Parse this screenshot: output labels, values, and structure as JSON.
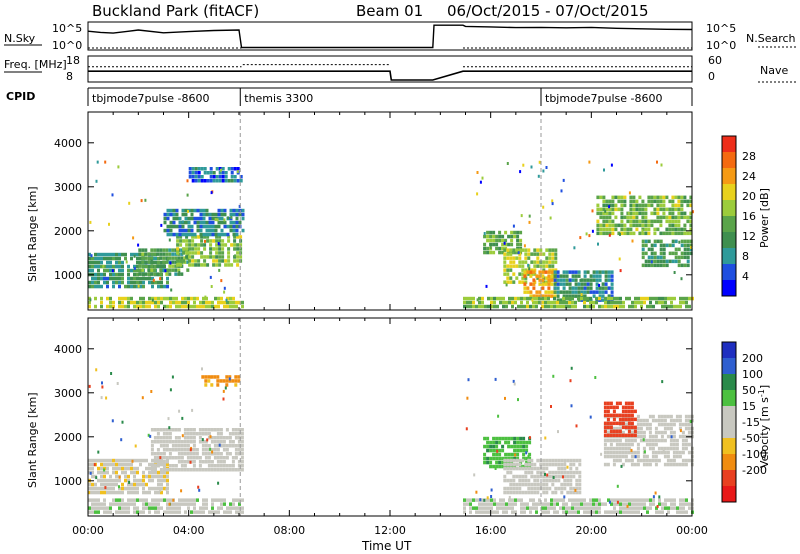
{
  "header": {
    "station": "Buckland Park (fitACF)",
    "beam": "Beam 01",
    "date_range": "06/Oct/2015 - 07/Oct/2015"
  },
  "colors": {
    "power_scale": [
      "#0000ff",
      "#1f4fe0",
      "#2f9a9a",
      "#3f8f4f",
      "#5aa44a",
      "#9ccc3c",
      "#e8d11c",
      "#f59a14",
      "#f46a10",
      "#ee2e1a"
    ],
    "velocity_scale": [
      "#1f2fc0",
      "#2f5fd0",
      "#2a8a4a",
      "#4cc040",
      "#c8c8c0",
      "#c8c8c0",
      "#f0c020",
      "#f08c10",
      "#e84020",
      "#e81818"
    ],
    "ground_scatter": "#b4b4b4"
  },
  "chart_data": [
    {
      "type": "line",
      "panel": "noise",
      "left_label": "N.Sky",
      "right_label": "N.Search",
      "left_ticks": [
        "10^5",
        "10^0"
      ],
      "right_ticks": [
        "10^5",
        "10^0"
      ],
      "series": [
        {
          "name": "N.Sky",
          "x": [
            0.0,
            0.5,
            1.0,
            2.0,
            3.0,
            4.0,
            5.0,
            6.0,
            6.1,
            13.7,
            13.75,
            14.9,
            15.0,
            16.0,
            17.0,
            18.0,
            19.0,
            20.0,
            21.0,
            22.0,
            23.0,
            24.0
          ],
          "values": [
            0.7,
            0.65,
            0.68,
            0.7,
            0.66,
            0.72,
            0.7,
            0.75,
            0.02,
            0.02,
            0.95,
            0.95,
            0.9,
            0.88,
            0.85,
            0.86,
            0.84,
            0.86,
            0.82,
            0.8,
            0.78,
            0.77
          ]
        },
        {
          "name": "N.Search",
          "x": [
            0.0,
            6.1,
            14.9,
            24.0
          ],
          "values": [
            0.0,
            0.0,
            0.0,
            0.0
          ]
        }
      ]
    },
    {
      "type": "line",
      "panel": "frequency",
      "left_label": "Freq. [MHz]",
      "right_label": "Nave",
      "left_ticks": [
        18,
        8
      ],
      "right_ticks": [
        60,
        0
      ],
      "series": [
        {
          "name": "Freq.",
          "x": [
            0.0,
            6.1,
            6.15,
            12.0,
            12.05,
            13.7,
            14.9,
            24.0
          ],
          "values": [
            12.0,
            12.0,
            12.0,
            12.0,
            8.0,
            8.0,
            12.0,
            12.0
          ]
        },
        {
          "name": "Nave",
          "x": [
            0.0,
            6.1,
            6.15,
            12.0,
            14.9,
            24.0
          ],
          "values": [
            36,
            36,
            42,
            42,
            36,
            36
          ]
        }
      ]
    },
    {
      "type": "table",
      "panel": "cpid",
      "label": "CPID",
      "segments": [
        {
          "start": 0.0,
          "end": 6.05,
          "text": "tbjmode7pulse -8600"
        },
        {
          "start": 6.05,
          "end": 18.0,
          "text": "themis 3300"
        },
        {
          "start": 18.0,
          "end": 24.0,
          "text": "tbjmode7pulse -8600"
        }
      ]
    },
    {
      "type": "heatmap",
      "panel": "power",
      "ylabel": "Slant Range [km]",
      "yticks": [
        1000,
        2000,
        3000,
        4000
      ],
      "ylim": [
        200,
        4700
      ],
      "xlim": [
        0,
        24
      ],
      "colorbar": {
        "label": "Power [dB]",
        "ticks": [
          4,
          8,
          12,
          16,
          20,
          24,
          28
        ],
        "range": [
          0,
          32
        ]
      },
      "blobs": [
        {
          "t0": 0.0,
          "t1": 3.2,
          "r0": 700,
          "r1": 1500,
          "level": 10
        },
        {
          "t0": 2.0,
          "t1": 4.0,
          "r0": 1000,
          "r1": 1600,
          "level": 13
        },
        {
          "t0": 3.5,
          "t1": 6.1,
          "r0": 1200,
          "r1": 1900,
          "level": 16
        },
        {
          "t0": 3.0,
          "t1": 6.1,
          "r0": 1900,
          "r1": 2500,
          "level": 8
        },
        {
          "t0": 4.0,
          "t1": 6.1,
          "r0": 3150,
          "r1": 3450,
          "level": 6
        },
        {
          "t0": 0.0,
          "t1": 6.1,
          "r0": 250,
          "r1": 500,
          "level": 18
        },
        {
          "t0": 15.7,
          "t1": 17.2,
          "r0": 1500,
          "r1": 2000,
          "level": 14
        },
        {
          "t0": 16.5,
          "t1": 18.6,
          "r0": 800,
          "r1": 1600,
          "level": 18
        },
        {
          "t0": 17.3,
          "t1": 18.5,
          "r0": 500,
          "r1": 1100,
          "level": 24
        },
        {
          "t0": 18.5,
          "t1": 20.8,
          "r0": 400,
          "r1": 1100,
          "level": 9
        },
        {
          "t0": 20.2,
          "t1": 24.0,
          "r0": 1900,
          "r1": 2800,
          "level": 16
        },
        {
          "t0": 22.0,
          "t1": 24.0,
          "r0": 1200,
          "r1": 1800,
          "level": 12
        },
        {
          "t0": 14.9,
          "t1": 24.0,
          "r0": 250,
          "r1": 500,
          "level": 16
        }
      ]
    },
    {
      "type": "heatmap",
      "panel": "velocity",
      "ylabel": "Slant Range [km]",
      "yticks": [
        1000,
        2000,
        3000,
        4000
      ],
      "ylim": [
        200,
        4700
      ],
      "xlim": [
        0,
        24
      ],
      "xlabel": "Time UT",
      "xticks": [
        "00:00",
        "04:00",
        "08:00",
        "12:00",
        "16:00",
        "20:00",
        "00:00"
      ],
      "colorbar": {
        "label": "Velocity [m s^-1]",
        "ticks": [
          200,
          100,
          50,
          15,
          -15,
          -50,
          -100,
          -200
        ]
      },
      "blobs": [
        {
          "t0": 0.0,
          "t1": 3.2,
          "r0": 700,
          "r1": 1500,
          "level": -5
        },
        {
          "t0": 2.5,
          "t1": 6.1,
          "r0": 1200,
          "r1": 2200,
          "level": 0
        },
        {
          "t0": 0.0,
          "t1": 6.1,
          "r0": 250,
          "r1": 600,
          "level": 5
        },
        {
          "t0": 4.5,
          "t1": 6.0,
          "r0": 3200,
          "r1": 3400,
          "level": -60
        },
        {
          "t0": 15.7,
          "t1": 17.5,
          "r0": 1300,
          "r1": 2000,
          "level": 40
        },
        {
          "t0": 16.5,
          "t1": 19.5,
          "r0": 700,
          "r1": 1500,
          "level": 0
        },
        {
          "t0": 20.5,
          "t1": 24.0,
          "r0": 1400,
          "r1": 2500,
          "level": 0
        },
        {
          "t0": 20.5,
          "t1": 21.7,
          "r0": 2000,
          "r1": 2800,
          "level": -150
        },
        {
          "t0": 14.9,
          "t1": 24.0,
          "r0": 250,
          "r1": 600,
          "level": 5
        }
      ]
    }
  ]
}
